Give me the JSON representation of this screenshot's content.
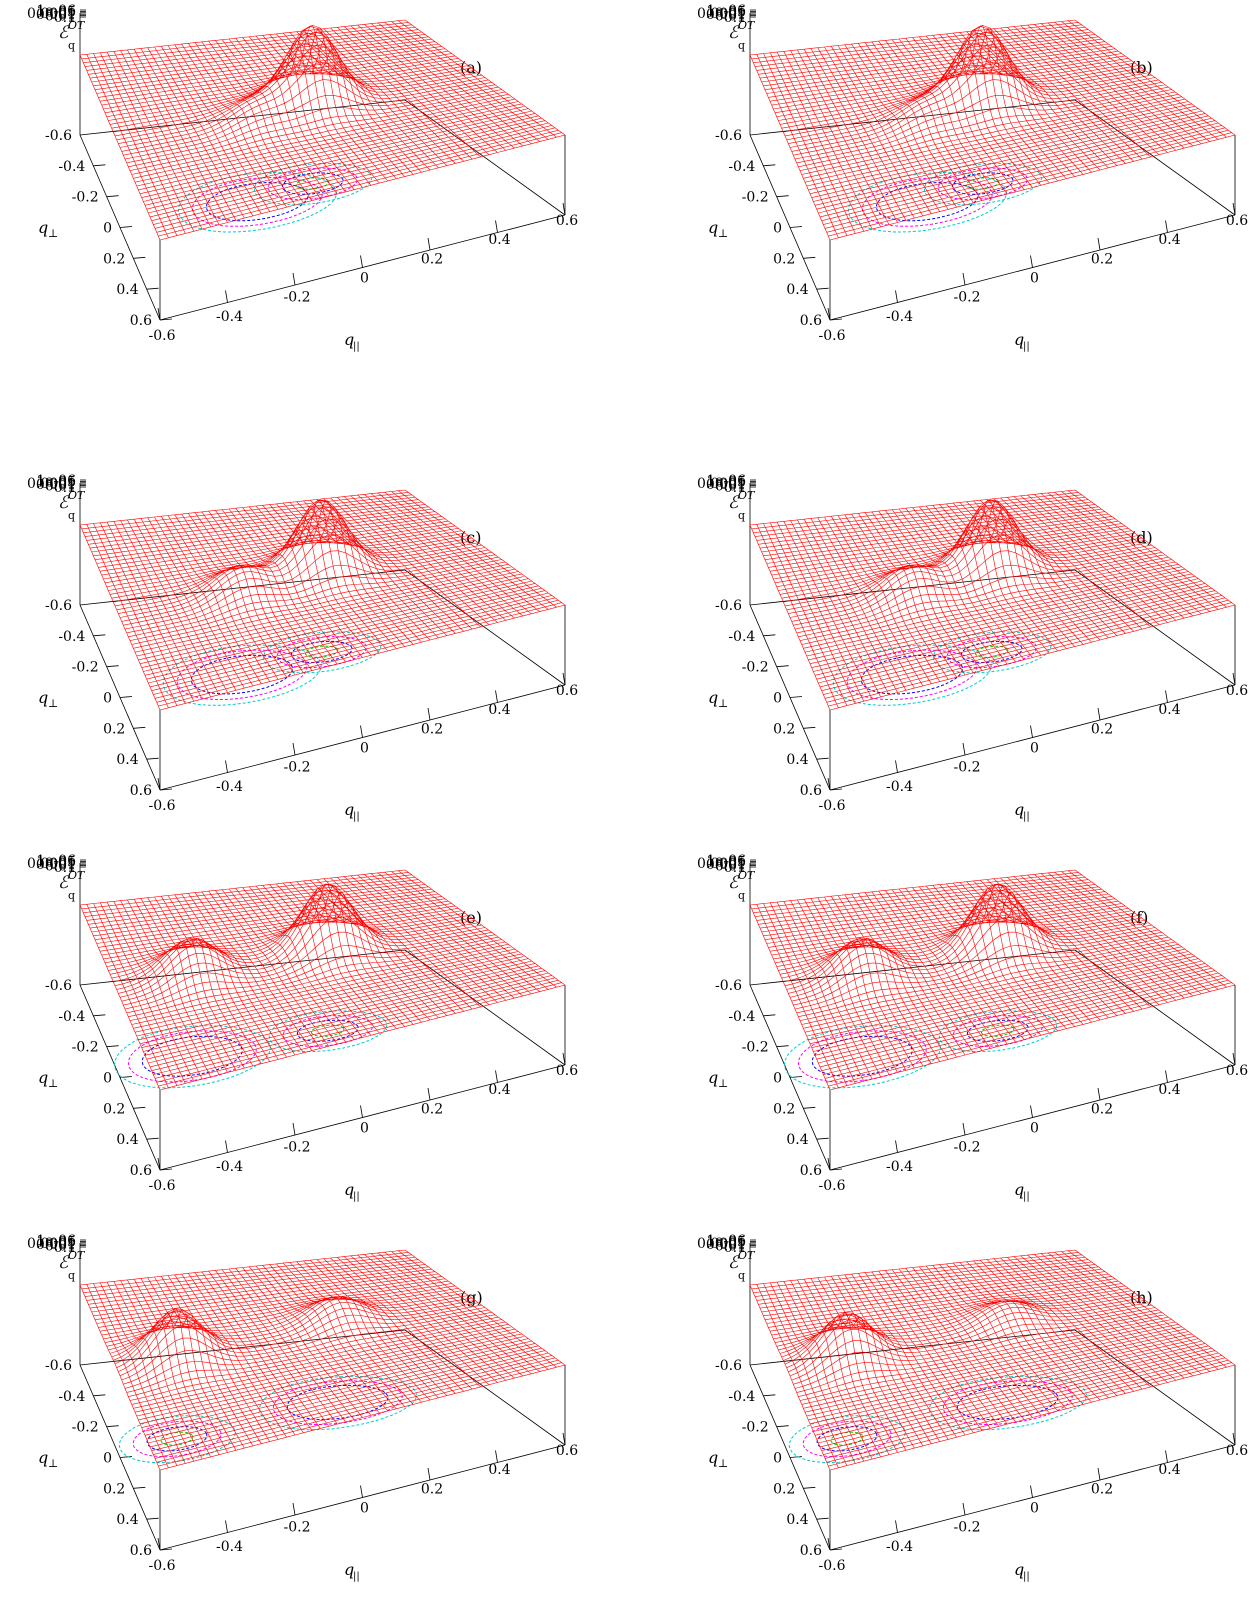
{
  "figure": {
    "layout": "4 rows x 2 columns of 3D surface plots"
  },
  "chart_data": [
    {
      "type": "surface3d",
      "panel_label": "(a)",
      "xlabel": "q_||",
      "ylabel": "q_⊥",
      "zlabel": "E_q^OT",
      "x_ticks": [
        "-0.6",
        "-0.4",
        "-0.2",
        "0",
        "0.2",
        "0.4",
        "0.6"
      ],
      "y_ticks": [
        "-0.6",
        "-0.4",
        "-0.2",
        "0",
        "0.2",
        "0.4",
        "0.6"
      ],
      "z_ticks": [
        "0.1",
        "0.01",
        "0.001",
        "0.0001",
        "1e-05",
        "1e-06"
      ],
      "xlim": [
        -0.6,
        0.6
      ],
      "ylim": [
        -0.6,
        0.6
      ],
      "zscale": "log",
      "surface_color": "#ff0000",
      "contour_colors": [
        "#00cc00",
        "#0000ff",
        "#ff00ff",
        "#00cccc"
      ],
      "peaks": [
        {
          "x": 0.05,
          "y": -0.05,
          "z": 0.02
        },
        {
          "x": -0.15,
          "y": 0.0,
          "z": 1e-05
        }
      ]
    },
    {
      "type": "surface3d",
      "panel_label": "(b)",
      "xlabel": "q_||",
      "ylabel": "q_⊥",
      "zlabel": "E_q^OT",
      "x_ticks": [
        "-0.6",
        "-0.4",
        "-0.2",
        "0",
        "0.2",
        "0.4",
        "0.6"
      ],
      "y_ticks": [
        "-0.6",
        "-0.4",
        "-0.2",
        "0",
        "0.2",
        "0.4",
        "0.6"
      ],
      "z_ticks": [
        "0.1",
        "0.01",
        "0.001",
        "0.0001",
        "1e-05",
        "1e-06"
      ],
      "xlim": [
        -0.6,
        0.6
      ],
      "ylim": [
        -0.6,
        0.6
      ],
      "zscale": "log",
      "surface_color": "#ff0000",
      "contour_colors": [
        "#00cc00",
        "#0000ff",
        "#ff00ff",
        "#00cccc"
      ],
      "peaks": [
        {
          "x": 0.05,
          "y": -0.05,
          "z": 0.02
        },
        {
          "x": -0.15,
          "y": 0.0,
          "z": 1e-05
        }
      ]
    },
    {
      "type": "surface3d",
      "panel_label": "(c)",
      "xlabel": "q_||",
      "ylabel": "q_⊥",
      "zlabel": "E_q^OT",
      "x_ticks": [
        "-0.6",
        "-0.4",
        "-0.2",
        "0",
        "0.2",
        "0.4",
        "0.6"
      ],
      "y_ticks": [
        "-0.6",
        "-0.4",
        "-0.2",
        "0",
        "0.2",
        "0.4",
        "0.6"
      ],
      "z_ticks": [
        "0.1",
        "0.01",
        "0.001",
        "0.0001",
        "1e-05",
        "1e-06"
      ],
      "xlim": [
        -0.6,
        0.6
      ],
      "ylim": [
        -0.6,
        0.6
      ],
      "zscale": "log",
      "surface_color": "#ff0000",
      "contour_colors": [
        "#00cc00",
        "#0000ff",
        "#ff00ff",
        "#00cccc"
      ],
      "peaks": [
        {
          "x": 0.08,
          "y": -0.05,
          "z": 0.01
        },
        {
          "x": -0.2,
          "y": 0.0,
          "z": 3e-05
        }
      ]
    },
    {
      "type": "surface3d",
      "panel_label": "(d)",
      "xlabel": "q_||",
      "ylabel": "q_⊥",
      "zlabel": "E_q^OT",
      "x_ticks": [
        "-0.6",
        "-0.4",
        "-0.2",
        "0",
        "0.2",
        "0.4",
        "0.6"
      ],
      "y_ticks": [
        "-0.6",
        "-0.4",
        "-0.2",
        "0",
        "0.2",
        "0.4",
        "0.6"
      ],
      "z_ticks": [
        "0.1",
        "0.01",
        "0.001",
        "0.0001",
        "1e-05",
        "1e-06"
      ],
      "xlim": [
        -0.6,
        0.6
      ],
      "ylim": [
        -0.6,
        0.6
      ],
      "zscale": "log",
      "surface_color": "#ff0000",
      "contour_colors": [
        "#00cc00",
        "#0000ff",
        "#ff00ff",
        "#00cccc"
      ],
      "peaks": [
        {
          "x": 0.08,
          "y": -0.05,
          "z": 0.01
        },
        {
          "x": -0.2,
          "y": 0.0,
          "z": 3e-05
        }
      ]
    },
    {
      "type": "surface3d",
      "panel_label": "(e)",
      "xlabel": "q_||",
      "ylabel": "q_⊥",
      "zlabel": "E_q^OT",
      "x_ticks": [
        "-0.6",
        "-0.4",
        "-0.2",
        "0",
        "0.2",
        "0.4",
        "0.6"
      ],
      "y_ticks": [
        "-0.6",
        "-0.4",
        "-0.2",
        "0",
        "0.2",
        "0.4",
        "0.6"
      ],
      "z_ticks": [
        "0.1",
        "0.01",
        "0.001",
        "0.0001",
        "1e-05",
        "1e-06"
      ],
      "xlim": [
        -0.6,
        0.6
      ],
      "ylim": [
        -0.6,
        0.6
      ],
      "zscale": "log",
      "surface_color": "#ff0000",
      "contour_colors": [
        "#00cc00",
        "#0000ff",
        "#ff00ff",
        "#00cccc"
      ],
      "peaks": [
        {
          "x": 0.1,
          "y": -0.05,
          "z": 0.005
        },
        {
          "x": -0.35,
          "y": -0.05,
          "z": 0.0001
        }
      ]
    },
    {
      "type": "surface3d",
      "panel_label": "(f)",
      "xlabel": "q_||",
      "ylabel": "q_⊥",
      "zlabel": "E_q^OT",
      "x_ticks": [
        "-0.6",
        "-0.4",
        "-0.2",
        "0",
        "0.2",
        "0.4",
        "0.6"
      ],
      "y_ticks": [
        "-0.6",
        "-0.4",
        "-0.2",
        "0",
        "0.2",
        "0.4",
        "0.6"
      ],
      "z_ticks": [
        "0.1",
        "0.01",
        "0.001",
        "0.0001",
        "1e-05",
        "1e-06"
      ],
      "xlim": [
        -0.6,
        0.6
      ],
      "ylim": [
        -0.6,
        0.6
      ],
      "zscale": "log",
      "surface_color": "#ff0000",
      "contour_colors": [
        "#00cc00",
        "#0000ff",
        "#ff00ff",
        "#00cccc"
      ],
      "peaks": [
        {
          "x": 0.1,
          "y": -0.05,
          "z": 0.005
        },
        {
          "x": -0.35,
          "y": -0.05,
          "z": 0.0001
        }
      ]
    },
    {
      "type": "surface3d",
      "panel_label": "(g)",
      "xlabel": "q_||",
      "ylabel": "q_⊥",
      "zlabel": "E_q^OT",
      "x_ticks": [
        "-0.6",
        "-0.4",
        "-0.2",
        "0",
        "0.2",
        "0.4",
        "0.6"
      ],
      "y_ticks": [
        "-0.6",
        "-0.4",
        "-0.2",
        "0",
        "0.2",
        "0.4",
        "0.6"
      ],
      "z_ticks": [
        "0.1",
        "0.01",
        "0.001",
        "0.0001",
        "1e-05",
        "1e-06"
      ],
      "xlim": [
        -0.6,
        0.6
      ],
      "ylim": [
        -0.6,
        0.6
      ],
      "zscale": "log",
      "surface_color": "#ff0000",
      "contour_colors": [
        "#00cc00",
        "#0000ff",
        "#ff00ff",
        "#00cccc"
      ],
      "peaks": [
        {
          "x": -0.4,
          "y": -0.05,
          "z": 0.0005
        },
        {
          "x": 0.15,
          "y": -0.1,
          "z": 2e-05
        }
      ]
    },
    {
      "type": "surface3d",
      "panel_label": "(h)",
      "xlabel": "q_||",
      "ylabel": "q_⊥",
      "zlabel": "E_q^OT",
      "x_ticks": [
        "-0.6",
        "-0.4",
        "-0.2",
        "0",
        "0.2",
        "0.4",
        "0.6"
      ],
      "y_ticks": [
        "-0.6",
        "-0.4",
        "-0.2",
        "0",
        "0.2",
        "0.4",
        "0.6"
      ],
      "z_ticks": [
        "0.1",
        "0.01",
        "0.001",
        "0.0001",
        "1e-05",
        "1e-06"
      ],
      "xlim": [
        -0.6,
        0.6
      ],
      "ylim": [
        -0.6,
        0.6
      ],
      "zscale": "log",
      "surface_color": "#ff0000",
      "contour_colors": [
        "#00cc00",
        "#0000ff",
        "#ff00ff",
        "#00cccc"
      ],
      "peaks": [
        {
          "x": -0.4,
          "y": -0.05,
          "z": 0.0003
        },
        {
          "x": 0.15,
          "y": -0.1,
          "z": 1e-05
        }
      ]
    }
  ]
}
